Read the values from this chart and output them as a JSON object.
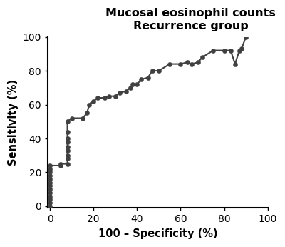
{
  "title_line1": "Mucosal eosinophil counts",
  "title_line2": "Recurrence group",
  "xlabel": "100 – Specificity (%)",
  "ylabel": "Sensitivity (%)",
  "x": [
    0,
    0,
    0,
    0,
    0,
    0,
    0,
    0,
    0,
    0,
    0,
    0,
    0,
    5,
    5,
    8,
    8,
    8,
    8,
    8,
    8,
    8,
    8,
    8,
    10,
    15,
    17,
    18,
    20,
    22,
    25,
    27,
    30,
    32,
    35,
    37,
    38,
    40,
    42,
    45,
    47,
    50,
    55,
    60,
    63,
    65,
    68,
    70,
    75,
    80,
    83,
    85,
    87,
    88,
    90
  ],
  "y": [
    0,
    2,
    4,
    6,
    8,
    10,
    12,
    14,
    16,
    18,
    20,
    22,
    24,
    24,
    25,
    25,
    28,
    30,
    33,
    35,
    38,
    40,
    44,
    50,
    52,
    52,
    55,
    60,
    62,
    64,
    64,
    65,
    65,
    67,
    68,
    70,
    72,
    72,
    75,
    76,
    80,
    80,
    84,
    84,
    85,
    84,
    85,
    88,
    92,
    92,
    92,
    84,
    92,
    93,
    100
  ],
  "color": "#404040",
  "marker": "o",
  "markersize": 4.5,
  "linewidth": 1.5,
  "xlim": [
    -1,
    100
  ],
  "ylim": [
    -1,
    100
  ],
  "xticks": [
    0,
    20,
    40,
    60,
    80,
    100
  ],
  "yticks": [
    0,
    20,
    40,
    60,
    80,
    100
  ],
  "title_fontsize": 11.5,
  "label_fontsize": 10.5,
  "tick_fontsize": 10,
  "background_color": "#ffffff"
}
